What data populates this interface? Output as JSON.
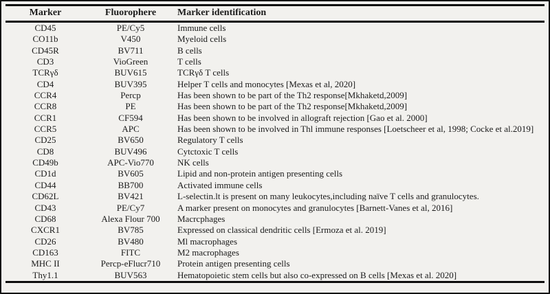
{
  "colors": {
    "background": "#f2f1ee",
    "border": "#141414",
    "text": "#1b1b1b"
  },
  "table": {
    "headers": [
      "Marker",
      "Fluorophere",
      "Marker identification"
    ],
    "rows": [
      [
        "CD45",
        "PE/Cy5",
        "Immune cells"
      ],
      [
        "CO11b",
        "V450",
        "Myeloid cells"
      ],
      [
        "CD45R",
        "BV711",
        "B cells"
      ],
      [
        "CD3",
        "VioGreen",
        "T cells"
      ],
      [
        "TCRγδ",
        "BUV615",
        "TCRγδ T cells"
      ],
      [
        "CD4",
        "BUV395",
        "Helper T cells and monocytes [Mexas et al, 2020]"
      ],
      [
        "CCR4",
        "Percp",
        "Has been shown to be part of the Th2 response[Mkhaketd,2009]"
      ],
      [
        "CCR8",
        "PE",
        "Has been shown to be part of the Th2 response[Mkhaketd,2009]"
      ],
      [
        "CCR1",
        "CF594",
        "Has been shown to be involved in allograft rejection [Gao et al. 2000]"
      ],
      [
        "CCR5",
        "APC",
        "Has been shown to be involved in Thl immune responses [Loetscheer et al, 1998; Cocke et al.2019]"
      ],
      [
        "CD25",
        "BV650",
        "Regulatory T cells"
      ],
      [
        "CD8",
        "BUV496",
        "Cytctoxic T cells"
      ],
      [
        "CD49b",
        "APC-Vio770",
        "NK cells"
      ],
      [
        "CD1d",
        "BV605",
        "Lipid and non-protein antigen presenting cells"
      ],
      [
        "CD44",
        "BB700",
        "Activated immune cells"
      ],
      [
        "CD62L",
        "BV421",
        "L-selectin.lt is present on many leukocytes,including naïve T cells and granulocytes."
      ],
      [
        "CD43",
        "PE/Cy7",
        "A marker present on monocytes and granulocytes [Barnett-Vanes et al, 2016]"
      ],
      [
        "CD68",
        "Alexa Flour 700",
        "Macrcphages"
      ],
      [
        "CXCR1",
        "BV785",
        "Expressed on classical dendritic cells [Ermoza et al. 2019]"
      ],
      [
        "CD26",
        "BV480",
        "Ml macrophages"
      ],
      [
        "CD163",
        "FITC",
        "M2 macrophages"
      ],
      [
        "MHC II",
        "Percp-eFlucr710",
        "Protein antigen presenting cells"
      ],
      [
        "Thy1.1",
        "BUV563",
        "Hematopoietic stem cells but also co-expressed on B cells [Mexas et al. 2020]"
      ]
    ]
  }
}
